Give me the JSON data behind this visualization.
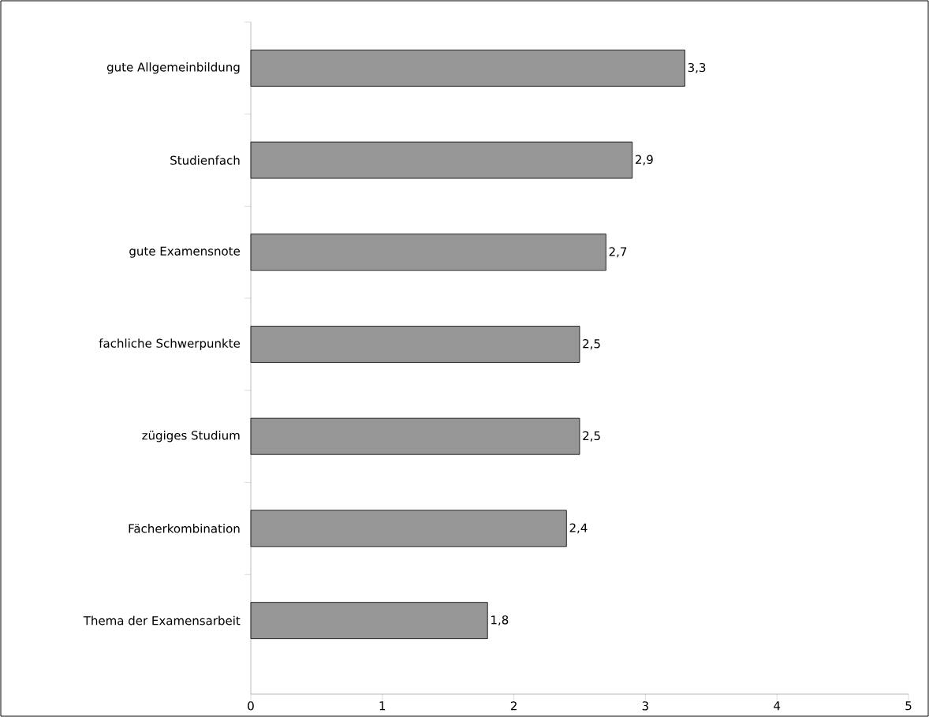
{
  "chart_data": {
    "type": "bar",
    "orientation": "horizontal",
    "categories": [
      "gute Allgemeinbildung",
      "Studienfach",
      "gute Examensnote",
      "fachliche Schwerpunkte",
      "zügiges Studium",
      "Fächerkombination",
      "Thema der Examensarbeit"
    ],
    "values": [
      3.3,
      2.9,
      2.7,
      2.5,
      2.5,
      2.4,
      1.8
    ],
    "value_labels": [
      "3,3",
      "2,9",
      "2,7",
      "2,5",
      "2,5",
      "2,4",
      "1,8"
    ],
    "color": "#969696",
    "xlim": [
      0,
      5
    ],
    "xticks": [
      0,
      1,
      2,
      3,
      4,
      5
    ]
  }
}
